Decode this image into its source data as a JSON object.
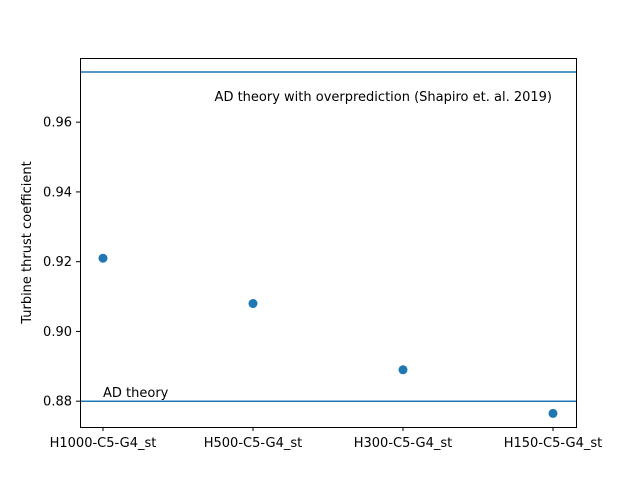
{
  "chart_data": {
    "type": "scatter",
    "title": "",
    "xlabel": "",
    "ylabel": "Turbine thrust coefficient",
    "categories": [
      "H1000-C5-G4_st",
      "H500-C5-G4_st",
      "H300-C5-G4_st",
      "H150-C5-G4_st"
    ],
    "series": [
      {
        "values": [
          0.921,
          0.908,
          0.889,
          0.8765
        ],
        "color": "#1f77b4"
      }
    ],
    "hlines": [
      {
        "y": 0.9744,
        "label": "AD theory with overprediction (Shapiro et. al. 2019)",
        "color": "#1f77b4"
      },
      {
        "y": 0.88,
        "label": "AD theory",
        "color": "#1f77b4"
      }
    ],
    "ylim": [
      0.8726,
      0.9784
    ],
    "yticks": [
      0.88,
      0.9,
      0.92,
      0.94,
      0.96
    ],
    "ytick_labels": [
      "0.88",
      "0.90",
      "0.92",
      "0.94",
      "0.96"
    ],
    "grid": false,
    "legend": "none"
  }
}
